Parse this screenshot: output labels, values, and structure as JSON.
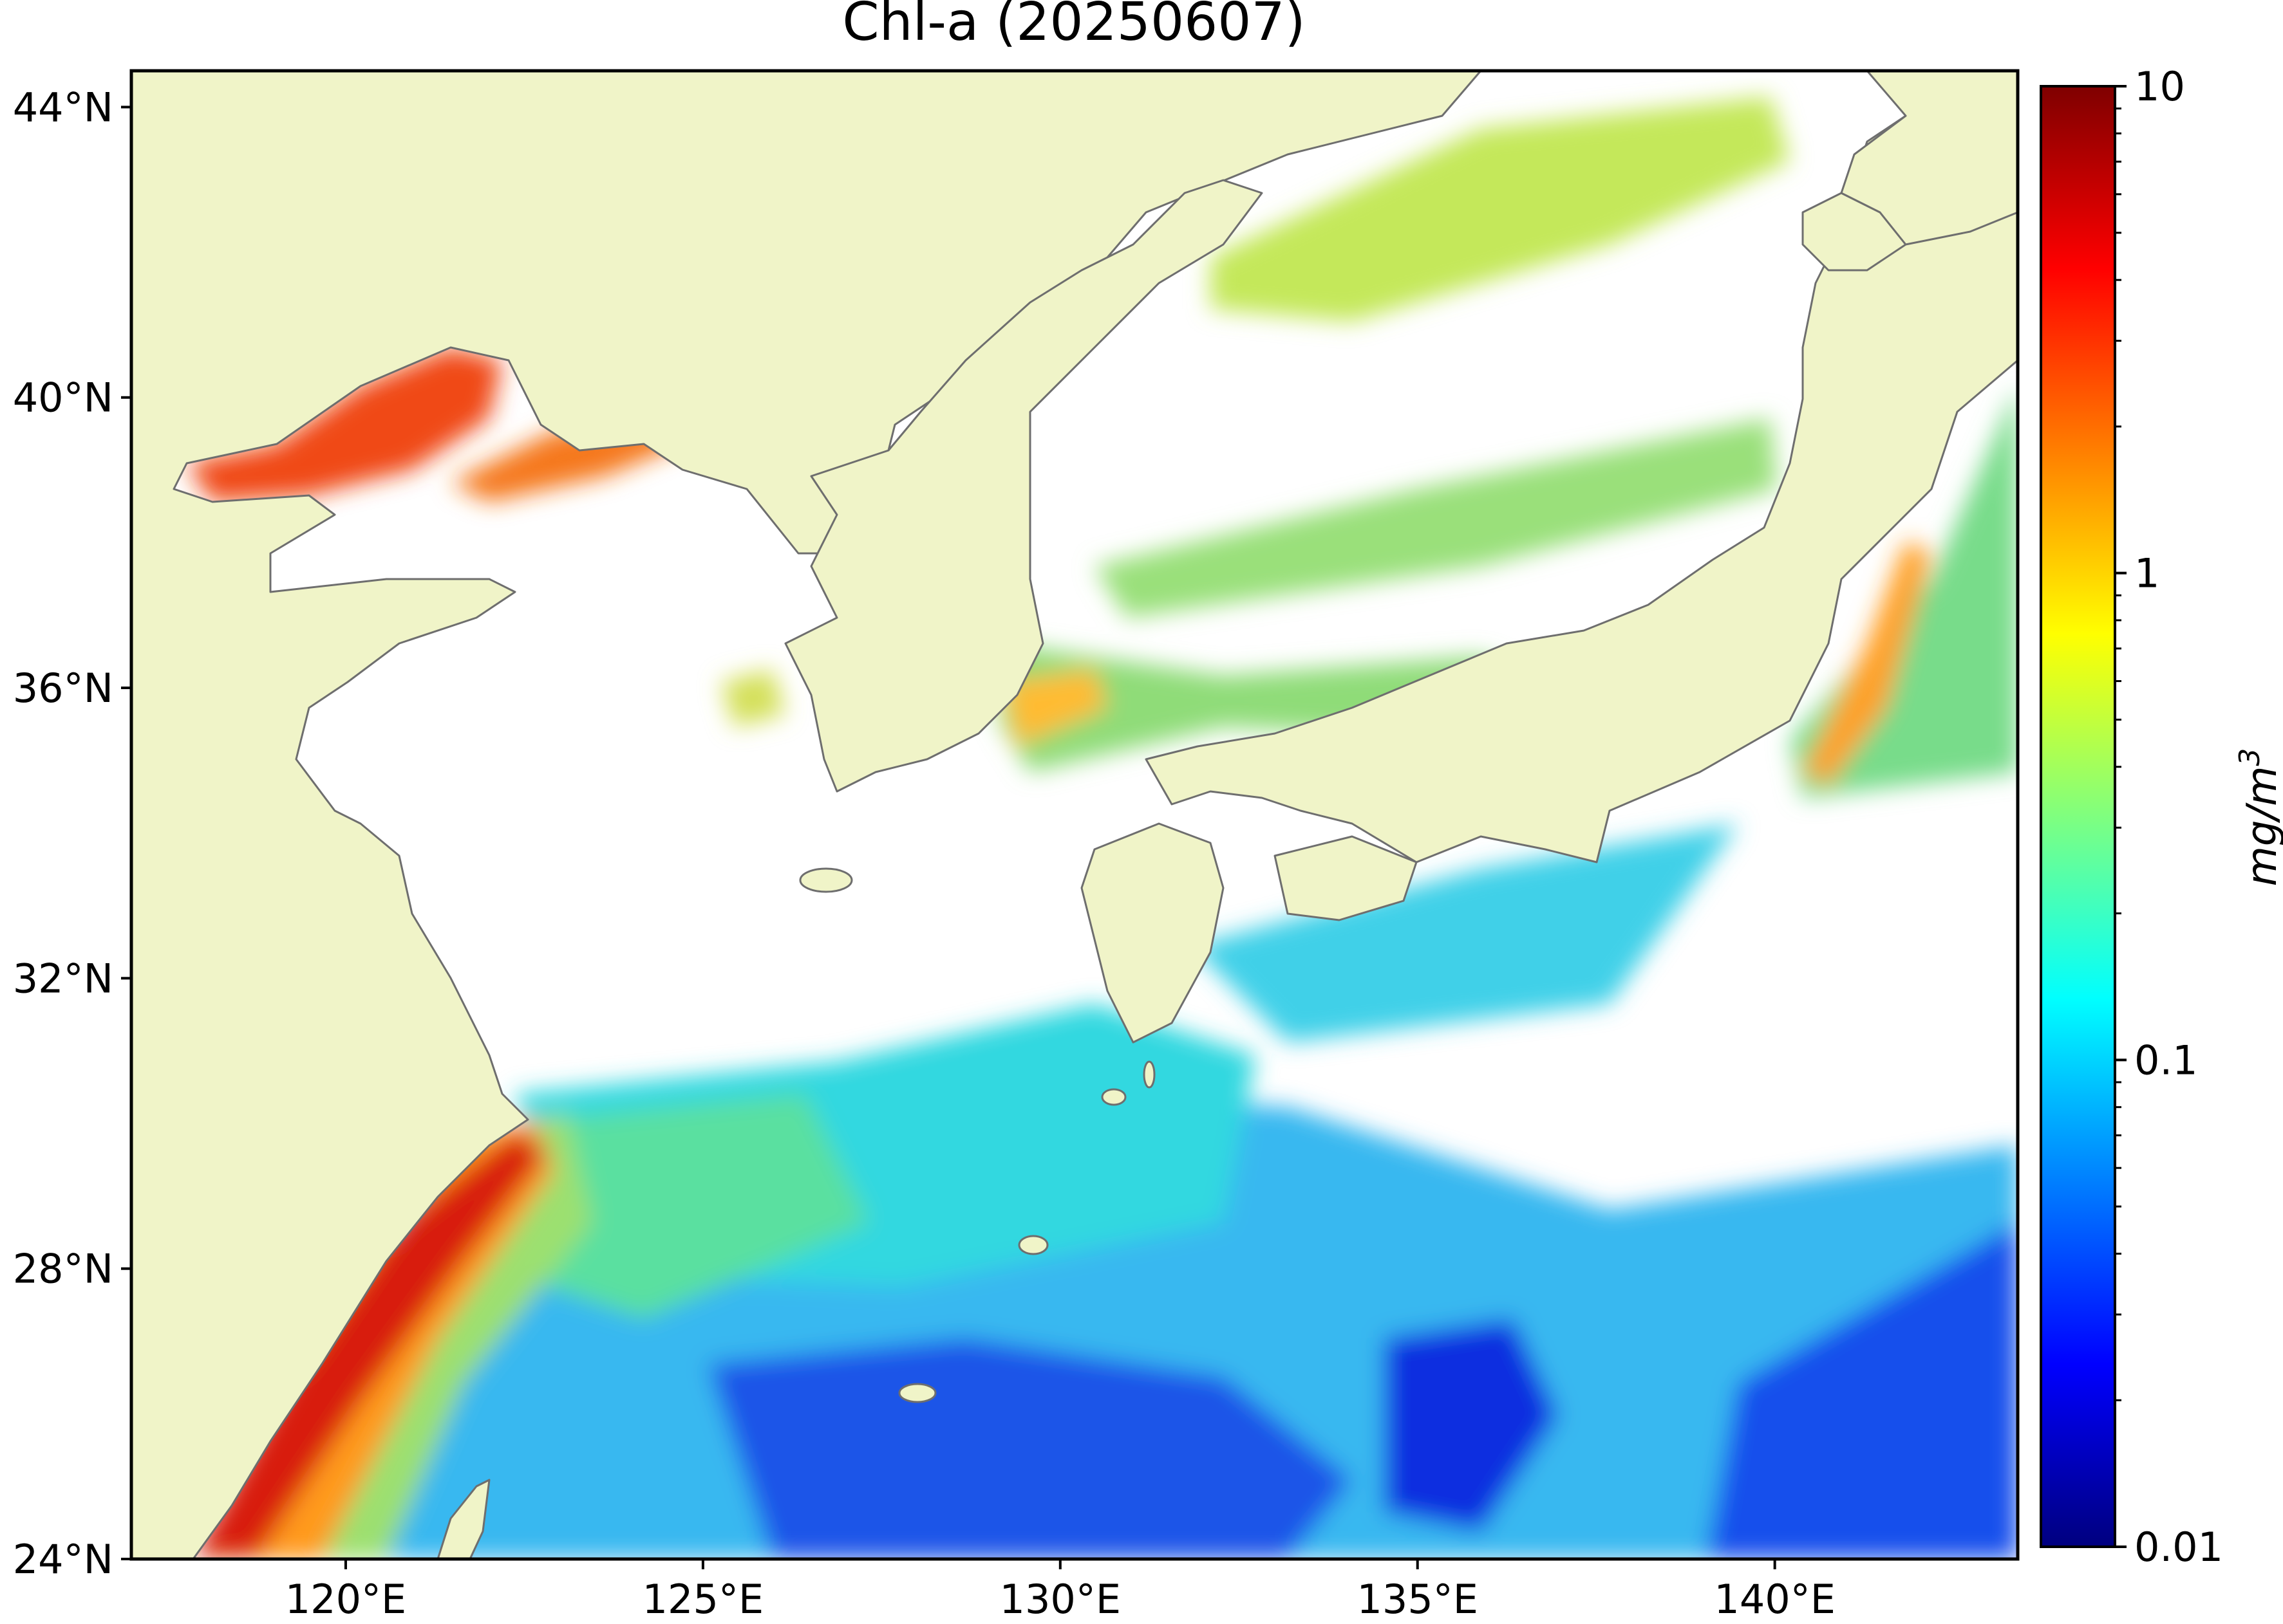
{
  "title": "Chl-a (20250607)",
  "map": {
    "type": "chlorophyll-a concentration map",
    "projection": "equirectangular",
    "lon_range": [
      117,
      143.4
    ],
    "lat_range": [
      24,
      44.5
    ],
    "x_ticks": [
      {
        "value": 120,
        "label": "120°E"
      },
      {
        "value": 125,
        "label": "125°E"
      },
      {
        "value": 130,
        "label": "130°E"
      },
      {
        "value": 135,
        "label": "135°E"
      },
      {
        "value": 140,
        "label": "140°E"
      }
    ],
    "y_ticks": [
      {
        "value": 44,
        "label": "44°N"
      },
      {
        "value": 40,
        "label": "40°N"
      },
      {
        "value": 36,
        "label": "36°N"
      },
      {
        "value": 32,
        "label": "32°N"
      },
      {
        "value": 28,
        "label": "28°N"
      },
      {
        "value": 24,
        "label": "24°N"
      }
    ],
    "colors": {
      "land": "#f0f4c8",
      "coastline": "#6e6e6e",
      "no_data": "#ffffff"
    }
  },
  "colorbar": {
    "label": "mg/m",
    "label_sup": "3",
    "scale": "log",
    "range": [
      0.01,
      10
    ],
    "ticks": [
      {
        "value": 10,
        "label": "10"
      },
      {
        "value": 1,
        "label": "1"
      },
      {
        "value": 0.1,
        "label": "0.1"
      },
      {
        "value": 0.01,
        "label": "0.01"
      }
    ],
    "colormap": "jet",
    "stops": [
      "#00007f",
      "#0000ff",
      "#007fff",
      "#00ffff",
      "#7fff7f",
      "#ffff00",
      "#ff7f00",
      "#ff0000",
      "#7f0000"
    ]
  }
}
